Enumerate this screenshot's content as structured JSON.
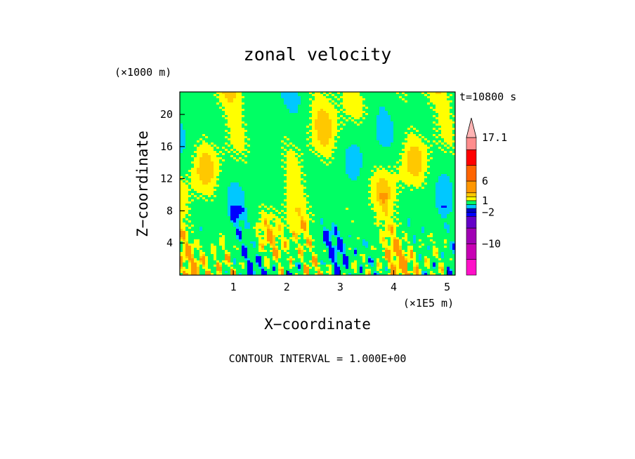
{
  "chart_data": {
    "type": "heatmap",
    "title": "zonal velocity",
    "xlabel": "X−coordinate",
    "ylabel": "Z−coordinate",
    "x_unit": "(×1E5 m)",
    "y_unit": "(×1000 m)",
    "time_label": "t=10800 s",
    "contour_interval_label": "CONTOUR INTERVAL = 1.000E+00",
    "xlim": [
      0,
      5.15
    ],
    "ylim": [
      0,
      22.8
    ],
    "x_ticks": [
      1,
      2,
      3,
      4,
      5
    ],
    "y_ticks": [
      4,
      8,
      12,
      16,
      20
    ],
    "colorbar": {
      "levels": [
        -18,
        -14,
        -10,
        -6,
        -3,
        -2,
        -1,
        0,
        1,
        2,
        3,
        6,
        10,
        14,
        17.1
      ],
      "labels": [
        "17.1",
        "6",
        "1",
        "−2",
        "−10"
      ],
      "label_values": [
        17.1,
        6,
        1,
        -2,
        -10
      ],
      "colors": [
        "#ff10c8",
        "#c800b4",
        "#a000b4",
        "#6400c8",
        "#0000ff",
        "#0000c8",
        "#00c8ff",
        "#00ff64",
        "#ffff00",
        "#ffc800",
        "#ff9600",
        "#ff6400",
        "#ff0000",
        "#ff8c8c",
        "#ffb4b4"
      ],
      "extend": "max"
    }
  }
}
